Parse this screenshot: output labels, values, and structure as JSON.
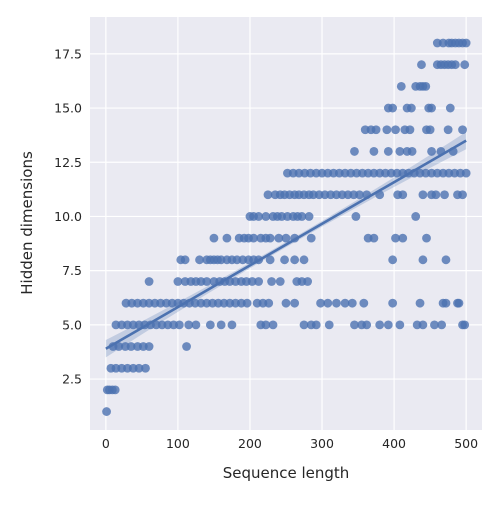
{
  "chart_data": {
    "type": "scatter",
    "xlabel": "Sequence length",
    "ylabel": "Hidden dimensions",
    "xlim": [
      -22,
      522
    ],
    "ylim": [
      0.15,
      19.2
    ],
    "xticks": [
      0,
      100,
      200,
      300,
      400,
      500
    ],
    "yticks": [
      2.5,
      5.0,
      7.5,
      10.0,
      12.5,
      15.0,
      17.5
    ],
    "xtick_labels": [
      "0",
      "100",
      "200",
      "300",
      "400",
      "500"
    ],
    "ytick_labels": [
      "2.5",
      "5.0",
      "7.5",
      "10.0",
      "12.5",
      "15.0",
      "17.5"
    ],
    "grid": true,
    "background": "#eaeaf2",
    "point_color": "#4c72b0",
    "regression": {
      "x": [
        0,
        500
      ],
      "y": [
        3.9,
        13.5
      ],
      "ci_halfwidth_end": 0.4
    },
    "series": [
      {
        "points": [
          [
            1,
            1
          ],
          [
            2,
            2
          ],
          [
            5,
            2
          ],
          [
            9,
            2
          ],
          [
            13,
            2
          ],
          [
            7,
            3
          ],
          [
            14,
            3
          ],
          [
            22,
            3
          ],
          [
            30,
            3
          ],
          [
            38,
            3
          ],
          [
            46,
            3
          ],
          [
            55,
            3
          ],
          [
            10,
            4
          ],
          [
            18,
            4
          ],
          [
            27,
            4
          ],
          [
            35,
            4
          ],
          [
            44,
            4
          ],
          [
            52,
            4
          ],
          [
            60,
            4
          ],
          [
            112,
            4
          ],
          [
            14,
            5
          ],
          [
            22,
            5
          ],
          [
            30,
            5
          ],
          [
            38,
            5
          ],
          [
            46,
            5
          ],
          [
            54,
            5
          ],
          [
            62,
            5
          ],
          [
            70,
            5
          ],
          [
            78,
            5
          ],
          [
            86,
            5
          ],
          [
            94,
            5
          ],
          [
            102,
            5
          ],
          [
            115,
            5
          ],
          [
            125,
            5
          ],
          [
            145,
            5
          ],
          [
            160,
            5
          ],
          [
            175,
            5
          ],
          [
            215,
            5
          ],
          [
            222,
            5
          ],
          [
            232,
            5
          ],
          [
            275,
            5
          ],
          [
            285,
            5
          ],
          [
            292,
            5
          ],
          [
            310,
            5
          ],
          [
            345,
            5
          ],
          [
            355,
            5
          ],
          [
            362,
            5
          ],
          [
            380,
            5
          ],
          [
            392,
            5
          ],
          [
            408,
            5
          ],
          [
            432,
            5
          ],
          [
            440,
            5
          ],
          [
            456,
            5
          ],
          [
            466,
            5
          ],
          [
            495,
            5
          ],
          [
            498,
            5
          ],
          [
            28,
            6
          ],
          [
            36,
            6
          ],
          [
            44,
            6
          ],
          [
            52,
            6
          ],
          [
            60,
            6
          ],
          [
            68,
            6
          ],
          [
            76,
            6
          ],
          [
            84,
            6
          ],
          [
            92,
            6
          ],
          [
            100,
            6
          ],
          [
            108,
            6
          ],
          [
            116,
            6
          ],
          [
            124,
            6
          ],
          [
            132,
            6
          ],
          [
            140,
            6
          ],
          [
            148,
            6
          ],
          [
            156,
            6
          ],
          [
            164,
            6
          ],
          [
            172,
            6
          ],
          [
            180,
            6
          ],
          [
            188,
            6
          ],
          [
            196,
            6
          ],
          [
            210,
            6
          ],
          [
            218,
            6
          ],
          [
            226,
            6
          ],
          [
            250,
            6
          ],
          [
            262,
            6
          ],
          [
            298,
            6
          ],
          [
            308,
            6
          ],
          [
            320,
            6
          ],
          [
            332,
            6
          ],
          [
            342,
            6
          ],
          [
            358,
            6
          ],
          [
            398,
            6
          ],
          [
            436,
            6
          ],
          [
            468,
            6
          ],
          [
            472,
            6
          ],
          [
            488,
            6
          ],
          [
            490,
            6
          ],
          [
            60,
            7
          ],
          [
            100,
            7
          ],
          [
            110,
            7
          ],
          [
            118,
            7
          ],
          [
            125,
            7
          ],
          [
            132,
            7
          ],
          [
            140,
            7
          ],
          [
            150,
            7
          ],
          [
            158,
            7
          ],
          [
            165,
            7
          ],
          [
            172,
            7
          ],
          [
            180,
            7
          ],
          [
            188,
            7
          ],
          [
            195,
            7
          ],
          [
            203,
            7
          ],
          [
            212,
            7
          ],
          [
            230,
            7
          ],
          [
            242,
            7
          ],
          [
            265,
            7
          ],
          [
            272,
            7
          ],
          [
            280,
            7
          ],
          [
            104,
            8
          ],
          [
            110,
            8
          ],
          [
            130,
            8
          ],
          [
            140,
            8
          ],
          [
            145,
            8
          ],
          [
            150,
            8
          ],
          [
            155,
            8
          ],
          [
            160,
            8
          ],
          [
            168,
            8
          ],
          [
            175,
            8
          ],
          [
            182,
            8
          ],
          [
            190,
            8
          ],
          [
            198,
            8
          ],
          [
            205,
            8
          ],
          [
            212,
            8
          ],
          [
            228,
            8
          ],
          [
            248,
            8
          ],
          [
            262,
            8
          ],
          [
            275,
            8
          ],
          [
            398,
            8
          ],
          [
            440,
            8
          ],
          [
            472,
            8
          ],
          [
            150,
            9
          ],
          [
            168,
            9
          ],
          [
            185,
            9
          ],
          [
            192,
            9
          ],
          [
            198,
            9
          ],
          [
            205,
            9
          ],
          [
            215,
            9
          ],
          [
            222,
            9
          ],
          [
            228,
            9
          ],
          [
            240,
            9
          ],
          [
            250,
            9
          ],
          [
            262,
            9
          ],
          [
            285,
            9
          ],
          [
            364,
            9
          ],
          [
            372,
            9
          ],
          [
            402,
            9
          ],
          [
            412,
            9
          ],
          [
            445,
            9
          ],
          [
            200,
            10
          ],
          [
            205,
            10
          ],
          [
            212,
            10
          ],
          [
            222,
            10
          ],
          [
            232,
            10
          ],
          [
            238,
            10
          ],
          [
            244,
            10
          ],
          [
            252,
            10
          ],
          [
            260,
            10
          ],
          [
            266,
            10
          ],
          [
            272,
            10
          ],
          [
            282,
            10
          ],
          [
            347,
            10
          ],
          [
            430,
            10
          ],
          [
            225,
            11
          ],
          [
            235,
            11
          ],
          [
            242,
            11
          ],
          [
            248,
            11
          ],
          [
            255,
            11
          ],
          [
            262,
            11
          ],
          [
            268,
            11
          ],
          [
            275,
            11
          ],
          [
            282,
            11
          ],
          [
            288,
            11
          ],
          [
            296,
            11
          ],
          [
            304,
            11
          ],
          [
            312,
            11
          ],
          [
            320,
            11
          ],
          [
            328,
            11
          ],
          [
            336,
            11
          ],
          [
            344,
            11
          ],
          [
            352,
            11
          ],
          [
            362,
            11
          ],
          [
            380,
            11
          ],
          [
            405,
            11
          ],
          [
            412,
            11
          ],
          [
            440,
            11
          ],
          [
            452,
            11
          ],
          [
            458,
            11
          ],
          [
            470,
            11
          ],
          [
            488,
            11
          ],
          [
            495,
            11
          ],
          [
            252,
            12
          ],
          [
            260,
            12
          ],
          [
            268,
            12
          ],
          [
            276,
            12
          ],
          [
            284,
            12
          ],
          [
            292,
            12
          ],
          [
            300,
            12
          ],
          [
            308,
            12
          ],
          [
            316,
            12
          ],
          [
            324,
            12
          ],
          [
            332,
            12
          ],
          [
            340,
            12
          ],
          [
            348,
            12
          ],
          [
            356,
            12
          ],
          [
            364,
            12
          ],
          [
            372,
            12
          ],
          [
            380,
            12
          ],
          [
            388,
            12
          ],
          [
            396,
            12
          ],
          [
            404,
            12
          ],
          [
            412,
            12
          ],
          [
            420,
            12
          ],
          [
            428,
            12
          ],
          [
            436,
            12
          ],
          [
            444,
            12
          ],
          [
            452,
            12
          ],
          [
            460,
            12
          ],
          [
            468,
            12
          ],
          [
            476,
            12
          ],
          [
            484,
            12
          ],
          [
            492,
            12
          ],
          [
            500,
            12
          ],
          [
            345,
            13
          ],
          [
            372,
            13
          ],
          [
            392,
            13
          ],
          [
            408,
            13
          ],
          [
            418,
            13
          ],
          [
            425,
            13
          ],
          [
            452,
            13
          ],
          [
            465,
            13
          ],
          [
            482,
            13
          ],
          [
            360,
            14
          ],
          [
            368,
            14
          ],
          [
            375,
            14
          ],
          [
            390,
            14
          ],
          [
            402,
            14
          ],
          [
            415,
            14
          ],
          [
            422,
            14
          ],
          [
            445,
            14
          ],
          [
            450,
            14
          ],
          [
            475,
            14
          ],
          [
            495,
            14
          ],
          [
            392,
            15
          ],
          [
            398,
            15
          ],
          [
            418,
            15
          ],
          [
            424,
            15
          ],
          [
            448,
            15
          ],
          [
            452,
            15
          ],
          [
            478,
            15
          ],
          [
            410,
            16
          ],
          [
            430,
            16
          ],
          [
            436,
            16
          ],
          [
            440,
            16
          ],
          [
            444,
            16
          ],
          [
            438,
            17
          ],
          [
            460,
            17
          ],
          [
            465,
            17
          ],
          [
            470,
            17
          ],
          [
            475,
            17
          ],
          [
            480,
            17
          ],
          [
            485,
            17
          ],
          [
            498,
            17
          ],
          [
            460,
            18
          ],
          [
            468,
            18
          ],
          [
            476,
            18
          ],
          [
            480,
            18
          ],
          [
            485,
            18
          ],
          [
            490,
            18
          ],
          [
            495,
            18
          ],
          [
            500,
            18
          ]
        ]
      }
    ]
  }
}
